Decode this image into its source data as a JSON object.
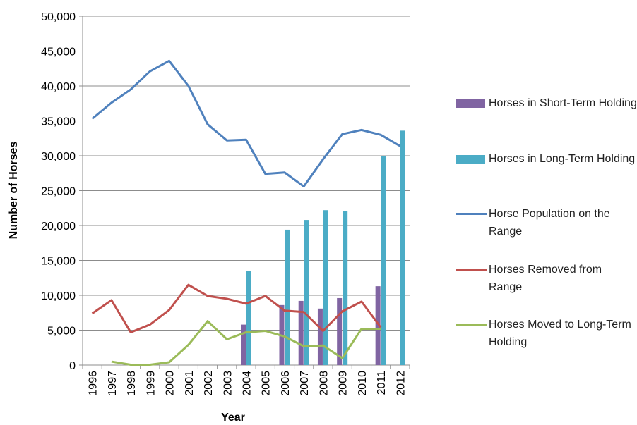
{
  "chart_data": {
    "type": "bar",
    "x_label": "Year",
    "y_label": "Number of Horses",
    "categories": [
      "1996",
      "1997",
      "1998",
      "1999",
      "2000",
      "2001",
      "2002",
      "2003",
      "2004",
      "2005",
      "2006",
      "2007",
      "2008",
      "2009",
      "2010",
      "2011",
      "2012"
    ],
    "ylim": [
      0,
      50000
    ],
    "yticks": [
      0,
      {
        "value": 5000,
        "label": "5,000"
      },
      {
        "value": 10000,
        "label": "10,000"
      },
      {
        "value": 15000,
        "label": "15,000"
      },
      {
        "value": 20000,
        "label": "20,000"
      },
      {
        "value": 25000,
        "label": "25,000"
      },
      {
        "value": 30000,
        "label": "30,000"
      },
      {
        "value": 35000,
        "label": "35,000"
      },
      {
        "value": 40000,
        "label": "40,000"
      },
      {
        "value": 45000,
        "label": "45,000"
      },
      {
        "value": 50000,
        "label": "50,000"
      }
    ],
    "grid": true,
    "legend": "right",
    "series": [
      {
        "name": "Horses in Short-Term Holding",
        "type": "bar",
        "color": "#8064a2",
        "values": [
          null,
          null,
          null,
          null,
          null,
          null,
          null,
          null,
          5800,
          null,
          8600,
          9200,
          8100,
          9600,
          null,
          11300,
          null
        ]
      },
      {
        "name": "Horses in Long-Term Holding",
        "type": "bar",
        "color": "#4bacc6",
        "values": [
          null,
          null,
          null,
          null,
          null,
          null,
          null,
          null,
          13500,
          null,
          19400,
          20800,
          22200,
          22100,
          null,
          30000,
          33600
        ]
      },
      {
        "name": "Horse Population on the Range",
        "type": "line",
        "color": "#4f81bd",
        "values": [
          35300,
          37600,
          39500,
          42100,
          43600,
          40000,
          34500,
          32200,
          32300,
          27400,
          27600,
          25600,
          29500,
          33100,
          33700,
          33000,
          31400
        ]
      },
      {
        "name": "Horses Removed from Range",
        "type": "line",
        "color": "#c0504d",
        "values": [
          7400,
          9300,
          4700,
          5800,
          7900,
          11500,
          9900,
          9500,
          8800,
          9900,
          7800,
          7600,
          4900,
          7700,
          9100,
          5400,
          null
        ]
      },
      {
        "name": "Horses Moved to Long-Term Holding",
        "type": "line",
        "color": "#9bbb59",
        "values": [
          null,
          500,
          50,
          50,
          400,
          2900,
          6300,
          3700,
          4700,
          4900,
          4100,
          2700,
          2800,
          1000,
          5200,
          5200,
          null
        ]
      }
    ]
  }
}
